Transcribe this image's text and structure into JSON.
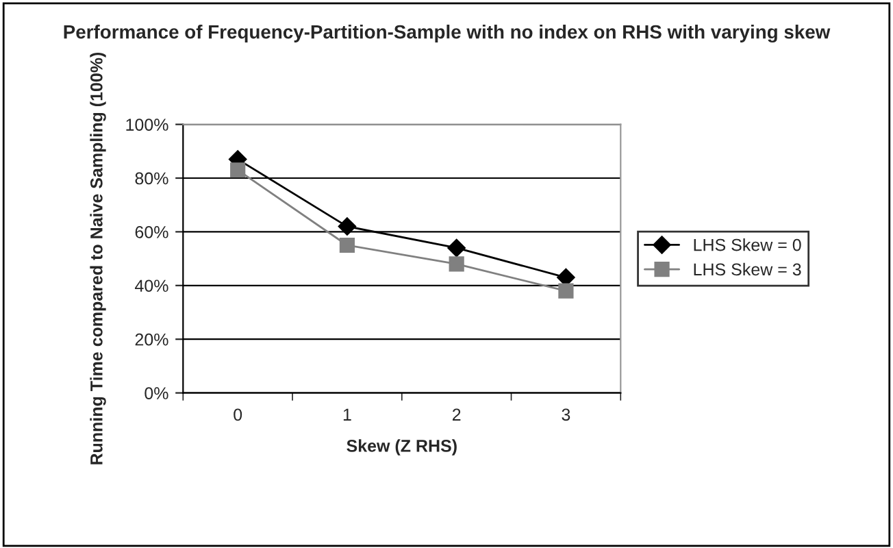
{
  "chart_data": {
    "type": "line",
    "title": "Performance of Frequency-Partition-Sample with no index on RHS with varying skew",
    "xlabel": "Skew (Z RHS)",
    "ylabel": "Running Time compared to Naive Sampling (100%)",
    "categories": [
      "0",
      "1",
      "2",
      "3"
    ],
    "series": [
      {
        "name": "LHS Skew = 0",
        "color": "#000000",
        "marker": "diamond",
        "values": [
          87,
          62,
          54,
          43
        ]
      },
      {
        "name": "LHS Skew = 3",
        "color": "#808080",
        "marker": "square",
        "values": [
          83,
          55,
          48,
          38
        ]
      }
    ],
    "ylim": [
      0,
      100
    ],
    "yticks": [
      {
        "value": 0,
        "label": "0%"
      },
      {
        "value": 20,
        "label": "20%"
      },
      {
        "value": 40,
        "label": "40%"
      },
      {
        "value": 60,
        "label": "60%"
      },
      {
        "value": 80,
        "label": "80%"
      },
      {
        "value": 100,
        "label": "100%"
      }
    ],
    "grid": "y",
    "legend": "right"
  }
}
